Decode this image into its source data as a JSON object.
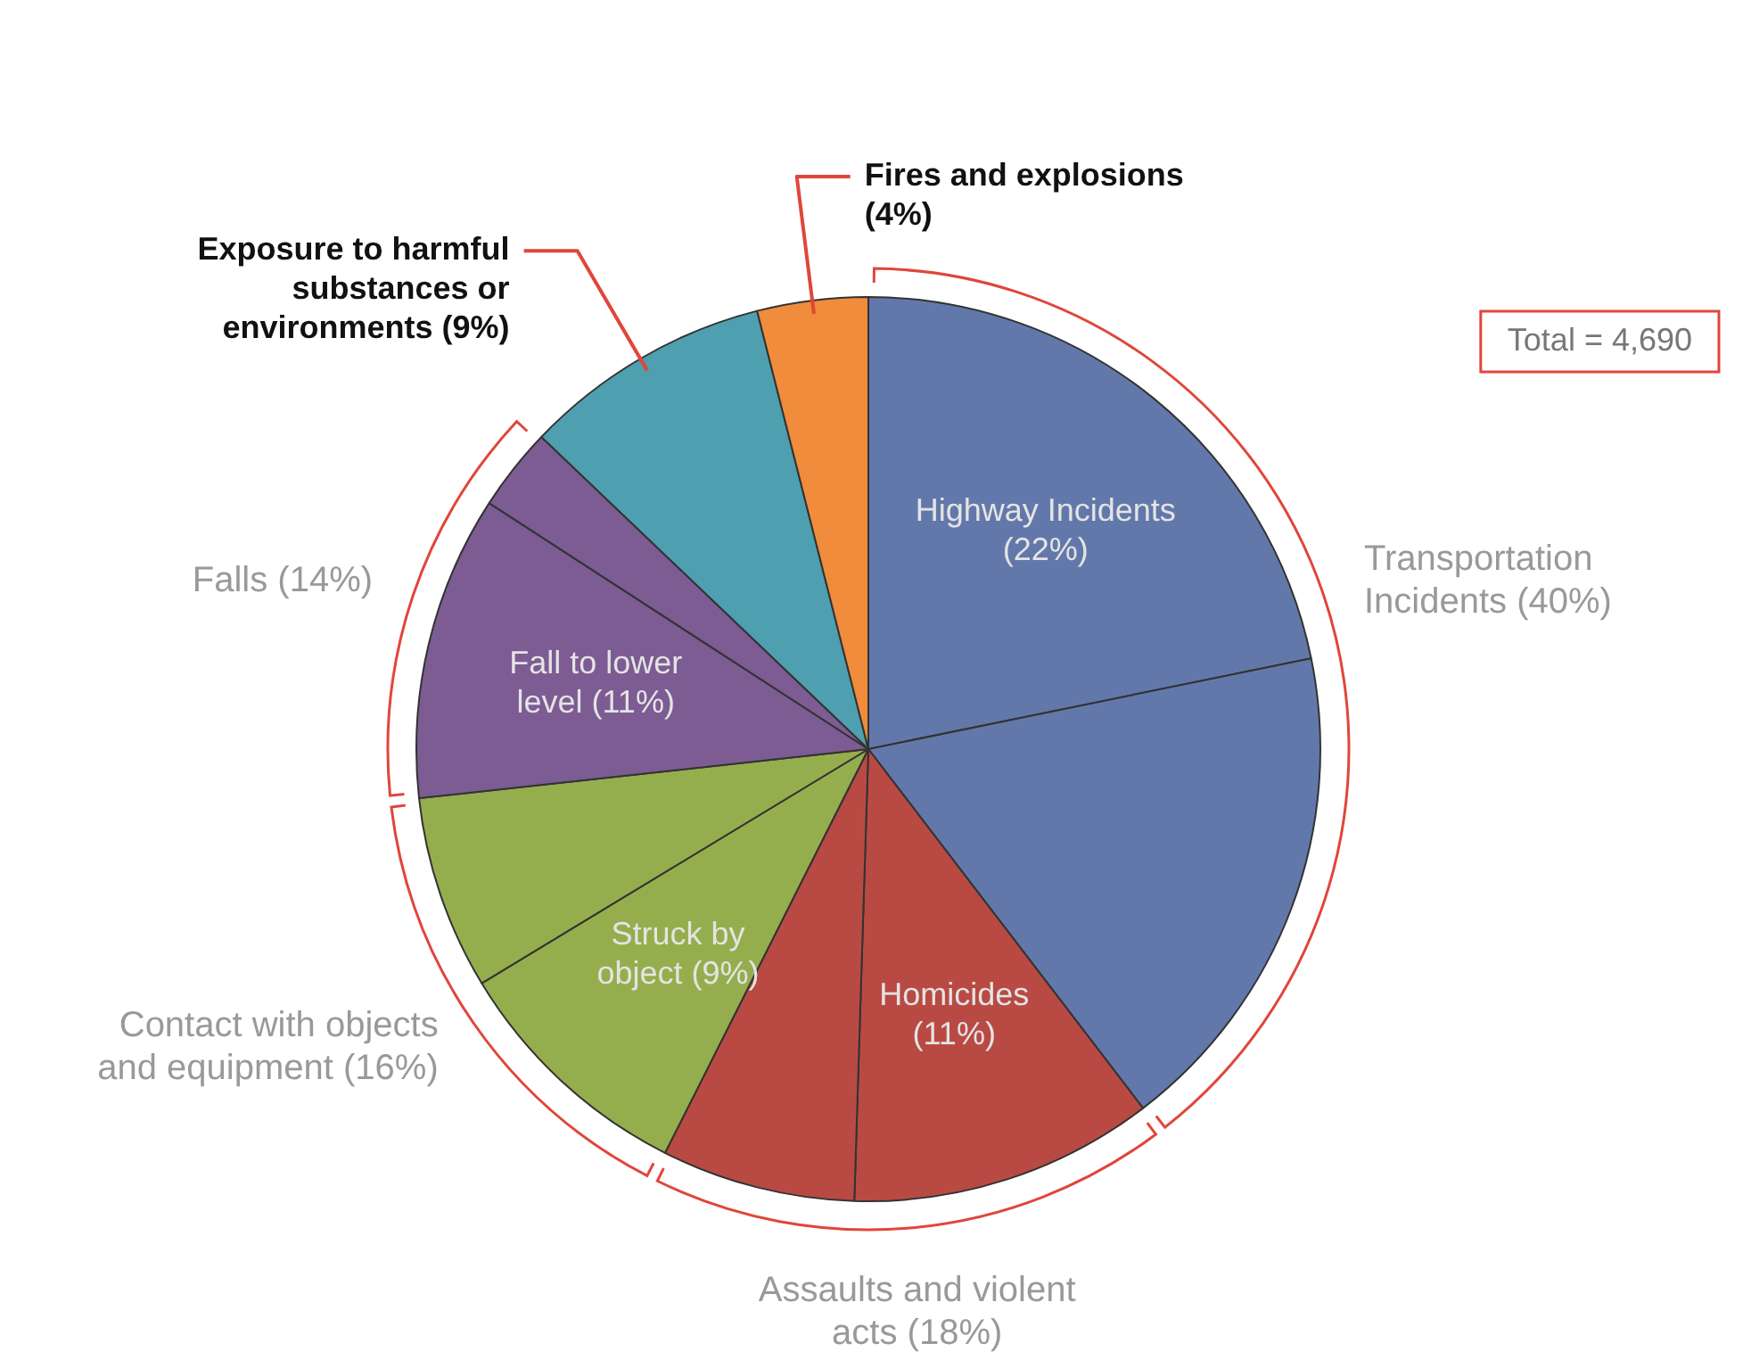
{
  "chart_data": {
    "type": "pie",
    "categories": [
      "Highway Incidents (22%)",
      null,
      "Homicides (11%)",
      null,
      "Struck by object (9%)",
      null,
      "Fall to lower level (11%)",
      null,
      "Exposure to harmful substances or environments (9%)",
      "Fires and explosions (4%)"
    ],
    "values": [
      22,
      18,
      11,
      7,
      9,
      7,
      11,
      3,
      9,
      4
    ],
    "colors": [
      "#6378aa",
      "#6378aa",
      "#b94a43",
      "#b94a43",
      "#95ae4d",
      "#95ae4d",
      "#7d5b93",
      "#7d5b93",
      "#4e9fb0",
      "#f08c3c"
    ],
    "annotations": [
      {
        "text": "Transportation Incidents (40%)",
        "x": "Highway Incidents (22%)"
      },
      {
        "text": "Assaults and violent acts (18%)",
        "x": "Homicides (11%)"
      },
      {
        "text": "Contact with objects and equipment (16%)",
        "x": "Struck by object (9%)"
      },
      {
        "text": "Falls (14%)",
        "x": "Fall to lower level (11%)"
      },
      "Total = 4,690"
    ],
    "legend": false
  }
}
